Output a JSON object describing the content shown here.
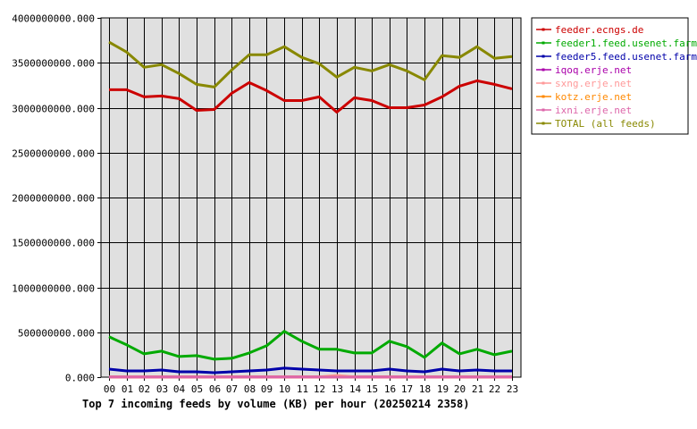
{
  "chart_data": {
    "type": "line",
    "title": "Top 7 incoming feeds by volume (KB) per hour (20250214 2358)",
    "categories": [
      "00",
      "01",
      "02",
      "03",
      "04",
      "05",
      "06",
      "07",
      "08",
      "09",
      "10",
      "11",
      "12",
      "13",
      "14",
      "15",
      "16",
      "17",
      "18",
      "19",
      "20",
      "21",
      "22",
      "23"
    ],
    "ylim": [
      0,
      4000000000
    ],
    "yticks": [
      {
        "value": 0,
        "label": "0.000"
      },
      {
        "value": 500000000,
        "label": "500000000.000"
      },
      {
        "value": 1000000000,
        "label": "1000000000.000"
      },
      {
        "value": 1500000000,
        "label": "1500000000.000"
      },
      {
        "value": 2000000000,
        "label": "2000000000.000"
      },
      {
        "value": 2500000000,
        "label": "2500000000.000"
      },
      {
        "value": 3000000000,
        "label": "3000000000.000"
      },
      {
        "value": 3500000000,
        "label": "3500000000.000"
      },
      {
        "value": 4000000000,
        "label": "4000000000.000"
      }
    ],
    "grid": true,
    "legend_position": "top-right",
    "background": "#e0e0e0",
    "series": [
      {
        "name": "feeder.ecngs.de",
        "color": "#cc0000",
        "values": [
          3200000000,
          3200000000,
          3120000000,
          3130000000,
          3100000000,
          2970000000,
          2980000000,
          3160000000,
          3280000000,
          3190000000,
          3080000000,
          3080000000,
          3120000000,
          2950000000,
          3110000000,
          3080000000,
          3000000000,
          3000000000,
          3030000000,
          3120000000,
          3240000000,
          3300000000,
          3260000000,
          3210000000
        ]
      },
      {
        "name": "feeder1.feed.usenet.farm",
        "color": "#00aa00",
        "values": [
          450000000,
          360000000,
          260000000,
          290000000,
          230000000,
          240000000,
          200000000,
          210000000,
          270000000,
          350000000,
          510000000,
          400000000,
          310000000,
          310000000,
          270000000,
          270000000,
          400000000,
          340000000,
          220000000,
          380000000,
          260000000,
          310000000,
          250000000,
          290000000
        ]
      },
      {
        "name": "feeder5.feed.usenet.farm",
        "color": "#0000aa",
        "values": [
          90000000,
          70000000,
          70000000,
          80000000,
          60000000,
          60000000,
          50000000,
          60000000,
          70000000,
          80000000,
          100000000,
          90000000,
          80000000,
          70000000,
          70000000,
          70000000,
          90000000,
          70000000,
          60000000,
          90000000,
          70000000,
          80000000,
          70000000,
          70000000
        ]
      },
      {
        "name": "iqoq.erje.net",
        "color": "#aa00aa",
        "values": [
          2000000,
          2000000,
          2000000,
          2000000,
          2000000,
          2000000,
          2000000,
          2000000,
          2000000,
          2000000,
          2000000,
          2000000,
          2000000,
          2000000,
          2000000,
          2000000,
          2000000,
          2000000,
          2000000,
          2000000,
          2000000,
          2000000,
          2000000,
          2000000
        ]
      },
      {
        "name": "sxng.erje.net",
        "color": "#ff9999",
        "values": [
          3000000,
          3000000,
          3000000,
          3000000,
          3000000,
          3000000,
          3000000,
          3000000,
          3000000,
          3000000,
          3000000,
          3000000,
          3000000,
          20000000,
          3000000,
          3000000,
          3000000,
          3000000,
          3000000,
          3000000,
          3000000,
          3000000,
          3000000,
          3000000
        ]
      },
      {
        "name": "kotz.erje.net",
        "color": "#ff8800",
        "values": [
          1000000,
          1000000,
          1000000,
          1000000,
          1000000,
          1000000,
          1000000,
          1000000,
          1000000,
          1000000,
          1000000,
          1000000,
          1000000,
          1000000,
          1000000,
          1000000,
          1000000,
          1000000,
          1000000,
          1000000,
          1000000,
          1000000,
          1000000,
          1000000
        ]
      },
      {
        "name": "ixni.erje.net",
        "color": "#dd66aa",
        "values": [
          1000000,
          1000000,
          1000000,
          1000000,
          1000000,
          1000000,
          1000000,
          1000000,
          1000000,
          1000000,
          1000000,
          1000000,
          1000000,
          1000000,
          1000000,
          1000000,
          1000000,
          1000000,
          1000000,
          1000000,
          1000000,
          1000000,
          1000000,
          1000000
        ]
      },
      {
        "name": "TOTAL (all feeds)",
        "color": "#888800",
        "values": [
          3730000000,
          3620000000,
          3450000000,
          3480000000,
          3380000000,
          3260000000,
          3230000000,
          3420000000,
          3590000000,
          3590000000,
          3680000000,
          3560000000,
          3490000000,
          3340000000,
          3450000000,
          3410000000,
          3480000000,
          3410000000,
          3310000000,
          3580000000,
          3560000000,
          3680000000,
          3550000000,
          3570000000
        ]
      }
    ]
  }
}
